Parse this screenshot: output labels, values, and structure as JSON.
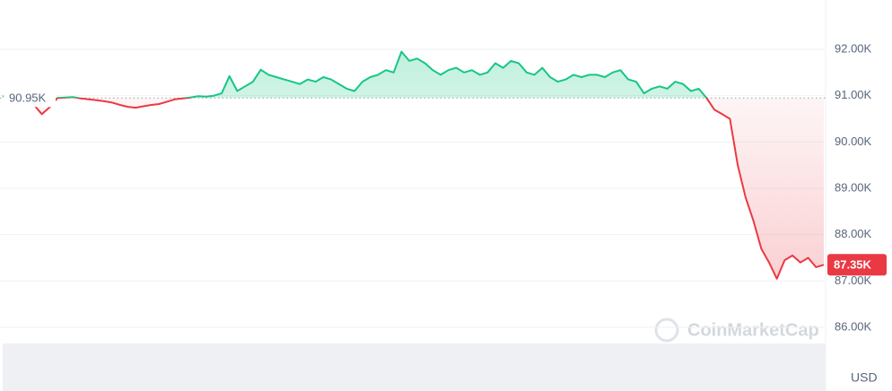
{
  "chart_data": {
    "type": "line",
    "values": [
      90990,
      90960,
      90900,
      90850,
      90800,
      90600,
      90750,
      90950,
      90960,
      90970,
      90940,
      90920,
      90900,
      90880,
      90850,
      90800,
      90760,
      90740,
      90770,
      90800,
      90820,
      90870,
      90920,
      90940,
      90960,
      90990,
      90980,
      91000,
      91050,
      91420,
      91100,
      91200,
      91300,
      91560,
      91450,
      91400,
      91350,
      91300,
      91250,
      91350,
      91300,
      91400,
      91350,
      91250,
      91150,
      91100,
      91300,
      91400,
      91450,
      91550,
      91500,
      91950,
      91750,
      91800,
      91700,
      91550,
      91450,
      91550,
      91600,
      91500,
      91550,
      91450,
      91500,
      91700,
      91600,
      91750,
      91700,
      91500,
      91450,
      91600,
      91400,
      91300,
      91350,
      91450,
      91400,
      91450,
      91450,
      91400,
      91500,
      91550,
      91350,
      91300,
      91050,
      91150,
      91200,
      91150,
      91300,
      91250,
      91100,
      91150,
      90950,
      90700,
      90600,
      90500,
      89500,
      88800,
      88300,
      87700,
      87400,
      87050,
      87450,
      87550,
      87400,
      87500,
      87300,
      87350
    ],
    "baseline": {
      "value": 90950,
      "label": "90.95K"
    },
    "last_price": {
      "value": 87350,
      "label": "87.35K"
    },
    "up_color": "#16c784",
    "down_color": "#ea3943",
    "ylim": [
      85600,
      93000
    ],
    "yticks": [
      {
        "value": 86000,
        "label": "86.00K"
      },
      {
        "value": 87000,
        "label": "87.00K"
      },
      {
        "value": 88000,
        "label": "88.00K"
      },
      {
        "value": 89000,
        "label": "89.00K"
      },
      {
        "value": 90000,
        "label": "90.00K"
      },
      {
        "value": 91000,
        "label": "91.00K"
      },
      {
        "value": 92000,
        "label": "92.00K"
      }
    ],
    "grid": true,
    "currency": "USD",
    "watermark": "CoinMarketCap"
  }
}
